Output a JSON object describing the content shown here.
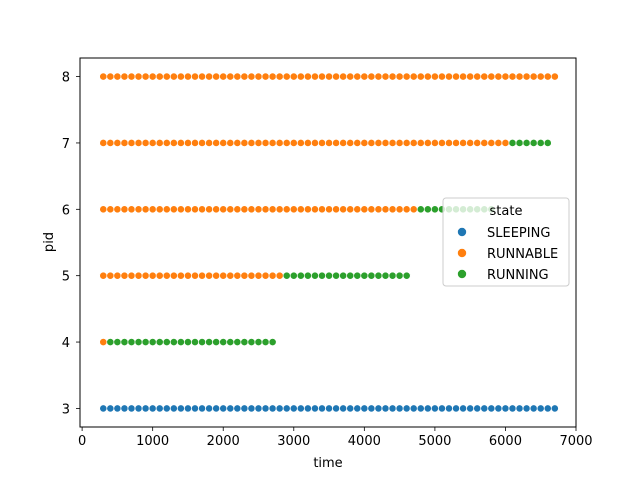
{
  "chart_data": {
    "type": "scatter",
    "xlabel": "time",
    "ylabel": "pid",
    "xlim": [
      -30,
      7000
    ],
    "ylim": [
      2.72,
      8.28
    ],
    "x_ticks": [
      0,
      1000,
      2000,
      3000,
      4000,
      5000,
      6000,
      7000
    ],
    "y_ticks": [
      3,
      4,
      5,
      6,
      7,
      8
    ],
    "grid": false,
    "legend": {
      "title": "state",
      "placement": "center-right",
      "entries": [
        {
          "name": "SLEEPING",
          "color": "#1f77b4"
        },
        {
          "name": "RUNNABLE",
          "color": "#ff7f0e"
        },
        {
          "name": "RUNNING",
          "color": "#2ca02c"
        }
      ]
    },
    "time_start": 300,
    "time_step": 100,
    "segments": [
      {
        "pid": 3,
        "state": "SLEEPING",
        "start": 300,
        "end": 6700
      },
      {
        "pid": 4,
        "state": "RUNNABLE",
        "start": 300,
        "end": 300
      },
      {
        "pid": 4,
        "state": "RUNNING",
        "start": 400,
        "end": 2700
      },
      {
        "pid": 5,
        "state": "RUNNABLE",
        "start": 300,
        "end": 2800
      },
      {
        "pid": 5,
        "state": "RUNNING",
        "start": 2900,
        "end": 4600
      },
      {
        "pid": 6,
        "state": "RUNNABLE",
        "start": 300,
        "end": 4700
      },
      {
        "pid": 6,
        "state": "RUNNING",
        "start": 4800,
        "end": 5800
      },
      {
        "pid": 7,
        "state": "RUNNABLE",
        "start": 300,
        "end": 6000
      },
      {
        "pid": 7,
        "state": "RUNNING",
        "start": 6100,
        "end": 6600
      },
      {
        "pid": 8,
        "state": "RUNNABLE",
        "start": 300,
        "end": 6700
      }
    ]
  }
}
